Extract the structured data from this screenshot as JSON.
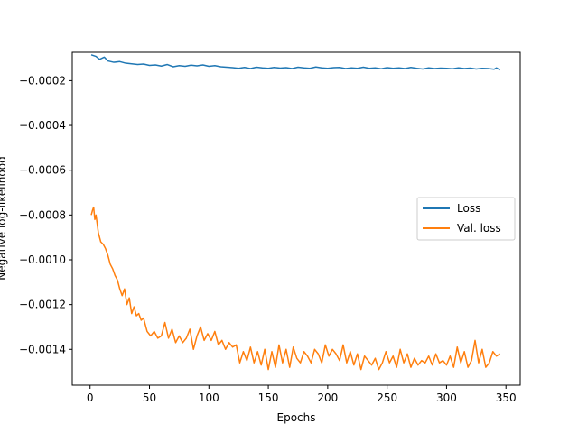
{
  "chart_data": {
    "type": "line",
    "title": "",
    "xlabel": "Epochs",
    "ylabel": "Negative log-likelihood",
    "xlim": [
      -15,
      362
    ],
    "ylim": [
      -0.00156,
      -7.35e-05
    ],
    "xticks": [
      0,
      50,
      100,
      150,
      200,
      250,
      300,
      350
    ],
    "xtick_labels": [
      "0",
      "50",
      "100",
      "150",
      "200",
      "250",
      "300",
      "350"
    ],
    "yticks": [
      -0.0014,
      -0.0012,
      -0.001,
      -0.0008,
      -0.0006,
      -0.0004,
      -0.0002
    ],
    "ytick_labels": [
      "−0.0014",
      "−0.0012",
      "−0.0010",
      "−0.0008",
      "−0.0006",
      "−0.0004",
      "−0.0002"
    ],
    "grid": false,
    "legend_position": "center-right",
    "series": [
      {
        "name": "Loss",
        "color": "#1f77b4",
        "x": [
          1,
          5,
          8,
          10,
          12,
          15,
          20,
          25,
          30,
          35,
          40,
          45,
          50,
          55,
          60,
          65,
          70,
          75,
          80,
          85,
          90,
          95,
          100,
          105,
          110,
          115,
          120,
          125,
          130,
          135,
          140,
          145,
          150,
          155,
          160,
          165,
          170,
          175,
          180,
          185,
          190,
          195,
          200,
          205,
          210,
          215,
          220,
          225,
          230,
          235,
          240,
          245,
          250,
          255,
          260,
          265,
          270,
          275,
          280,
          285,
          290,
          295,
          300,
          305,
          310,
          315,
          320,
          325,
          330,
          335,
          340,
          342,
          345
        ],
        "y": [
          -8.5e-05,
          -9.2e-05,
          -0.000105,
          -0.0001,
          -9.5e-05,
          -0.000112,
          -0.000118,
          -0.000115,
          -0.000122,
          -0.000125,
          -0.000128,
          -0.000126,
          -0.000132,
          -0.00013,
          -0.000135,
          -0.000128,
          -0.000138,
          -0.000133,
          -0.000136,
          -0.000131,
          -0.000134,
          -0.00013,
          -0.000136,
          -0.000133,
          -0.000138,
          -0.00014,
          -0.000142,
          -0.000145,
          -0.000141,
          -0.000146,
          -0.00014,
          -0.000143,
          -0.000145,
          -0.000141,
          -0.000144,
          -0.000142,
          -0.000146,
          -0.00014,
          -0.000143,
          -0.000145,
          -0.000139,
          -0.000143,
          -0.000145,
          -0.000142,
          -0.000141,
          -0.000146,
          -0.000143,
          -0.000145,
          -0.00014,
          -0.000145,
          -0.000143,
          -0.000147,
          -0.000142,
          -0.000145,
          -0.000143,
          -0.000146,
          -0.000141,
          -0.000145,
          -0.000148,
          -0.000143,
          -0.000146,
          -0.000144,
          -0.000145,
          -0.000147,
          -0.000143,
          -0.000146,
          -0.000144,
          -0.000148,
          -0.000145,
          -0.000146,
          -0.000149,
          -0.000143,
          -0.000152
        ]
      },
      {
        "name": "Val. loss",
        "color": "#ff7f0e",
        "x": [
          1,
          2,
          3,
          4,
          5,
          7,
          9,
          11,
          13,
          15,
          17,
          19,
          21,
          23,
          25,
          27,
          29,
          31,
          33,
          35,
          37,
          39,
          41,
          43,
          45,
          48,
          51,
          54,
          57,
          60,
          63,
          66,
          69,
          72,
          75,
          78,
          81,
          84,
          87,
          90,
          93,
          96,
          99,
          102,
          105,
          108,
          111,
          114,
          117,
          120,
          123,
          126,
          129,
          132,
          135,
          138,
          141,
          144,
          147,
          150,
          153,
          156,
          159,
          162,
          165,
          168,
          171,
          174,
          177,
          180,
          183,
          186,
          189,
          192,
          195,
          198,
          201,
          204,
          207,
          210,
          213,
          216,
          219,
          222,
          225,
          228,
          231,
          234,
          237,
          240,
          243,
          246,
          249,
          252,
          255,
          258,
          261,
          264,
          267,
          270,
          273,
          276,
          279,
          282,
          285,
          288,
          291,
          294,
          297,
          300,
          303,
          306,
          309,
          312,
          315,
          318,
          321,
          324,
          327,
          330,
          333,
          336,
          339,
          342,
          345
        ],
        "y": [
          -0.0008,
          -0.00078,
          -0.000765,
          -0.00082,
          -0.0008,
          -0.00088,
          -0.00092,
          -0.00093,
          -0.00095,
          -0.00098,
          -0.00102,
          -0.00104,
          -0.00107,
          -0.00109,
          -0.00113,
          -0.00116,
          -0.00113,
          -0.0012,
          -0.00117,
          -0.00124,
          -0.00121,
          -0.00125,
          -0.00124,
          -0.00127,
          -0.00126,
          -0.00132,
          -0.00134,
          -0.00132,
          -0.00135,
          -0.00134,
          -0.00128,
          -0.00135,
          -0.00131,
          -0.00137,
          -0.00134,
          -0.00137,
          -0.00135,
          -0.00131,
          -0.0014,
          -0.00134,
          -0.0013,
          -0.00136,
          -0.00133,
          -0.00136,
          -0.00132,
          -0.00138,
          -0.00136,
          -0.0014,
          -0.00137,
          -0.00139,
          -0.00138,
          -0.00146,
          -0.00141,
          -0.00145,
          -0.00139,
          -0.00146,
          -0.00141,
          -0.00147,
          -0.0014,
          -0.00149,
          -0.00141,
          -0.00148,
          -0.00138,
          -0.00146,
          -0.0014,
          -0.00148,
          -0.00139,
          -0.00144,
          -0.00146,
          -0.00141,
          -0.00143,
          -0.00146,
          -0.0014,
          -0.00142,
          -0.00146,
          -0.00138,
          -0.00143,
          -0.0014,
          -0.00142,
          -0.00145,
          -0.00138,
          -0.00146,
          -0.00141,
          -0.00147,
          -0.00142,
          -0.00149,
          -0.00143,
          -0.00145,
          -0.00147,
          -0.00144,
          -0.00149,
          -0.00146,
          -0.00141,
          -0.00146,
          -0.00143,
          -0.00148,
          -0.0014,
          -0.00146,
          -0.00142,
          -0.00148,
          -0.00144,
          -0.00147,
          -0.00145,
          -0.00146,
          -0.00143,
          -0.00147,
          -0.00142,
          -0.00146,
          -0.00145,
          -0.00147,
          -0.00143,
          -0.00148,
          -0.00139,
          -0.00146,
          -0.00141,
          -0.00148,
          -0.00145,
          -0.00136,
          -0.00146,
          -0.0014,
          -0.00148,
          -0.00146,
          -0.00141,
          -0.00143,
          -0.00142
        ]
      }
    ]
  }
}
